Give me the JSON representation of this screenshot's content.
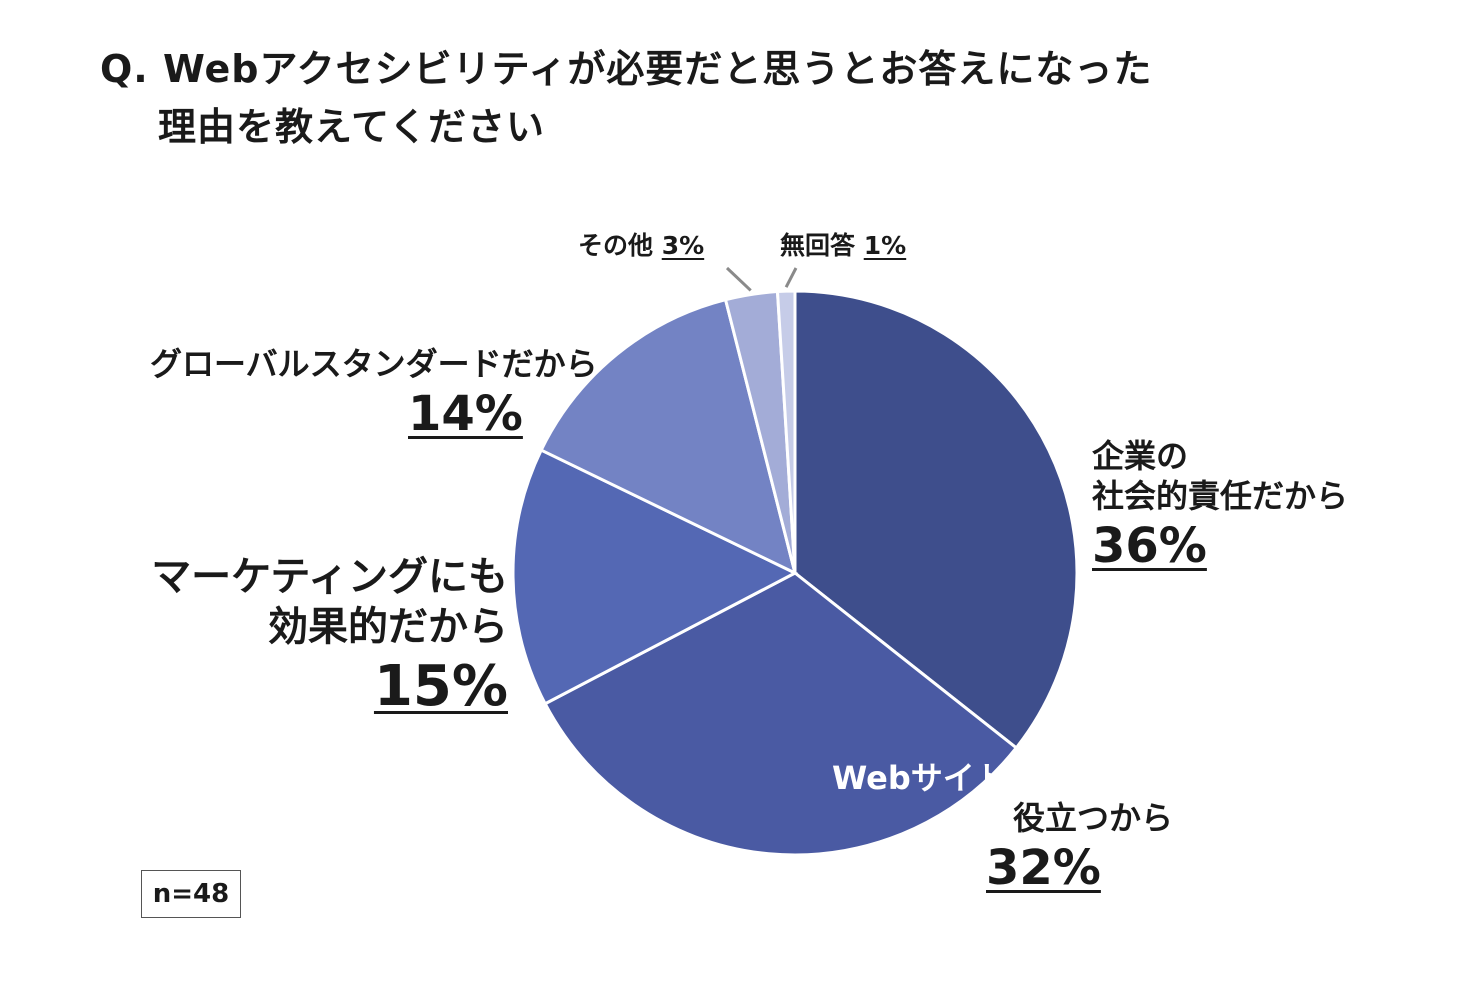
{
  "title": {
    "line1": "Q. Webアクセシビリティが必要だと思うとお答えになった",
    "line2": "理由を教えてください"
  },
  "sample_size": "n=48",
  "chart_data": {
    "type": "pie",
    "title": "Q. Webアクセシビリティが必要だと思うとお答えになった理由を教えてください",
    "slices": [
      {
        "label": "企業の社会的責任だから",
        "label_lines": [
          "企業の",
          "社会的責任だから"
        ],
        "value": 36,
        "display": "36%",
        "color": "#3e4e8c"
      },
      {
        "label": "Webサイトの品質向上に役立つから",
        "label_lines": [
          "Webサイトの品質向上に",
          "役立つから"
        ],
        "value": 32,
        "display": "32%",
        "color": "#4a5aa3"
      },
      {
        "label": "マーケティングにも効果的だから",
        "label_lines": [
          "マーケティングにも",
          "効果的だから"
        ],
        "value": 15,
        "display": "15%",
        "color": "#5468b4"
      },
      {
        "label": "グローバルスタンダードだから",
        "label_lines": [
          "グローバルスタンダードだから"
        ],
        "value": 14,
        "display": "14%",
        "color": "#7383c4"
      },
      {
        "label": "その他",
        "label_lines": [
          "その他"
        ],
        "value": 3,
        "display": "3%",
        "color": "#a3acd7"
      },
      {
        "label": "無回答",
        "label_lines": [
          "無回答"
        ],
        "value": 1,
        "display": "1%",
        "color": "#c6cce8"
      }
    ]
  }
}
